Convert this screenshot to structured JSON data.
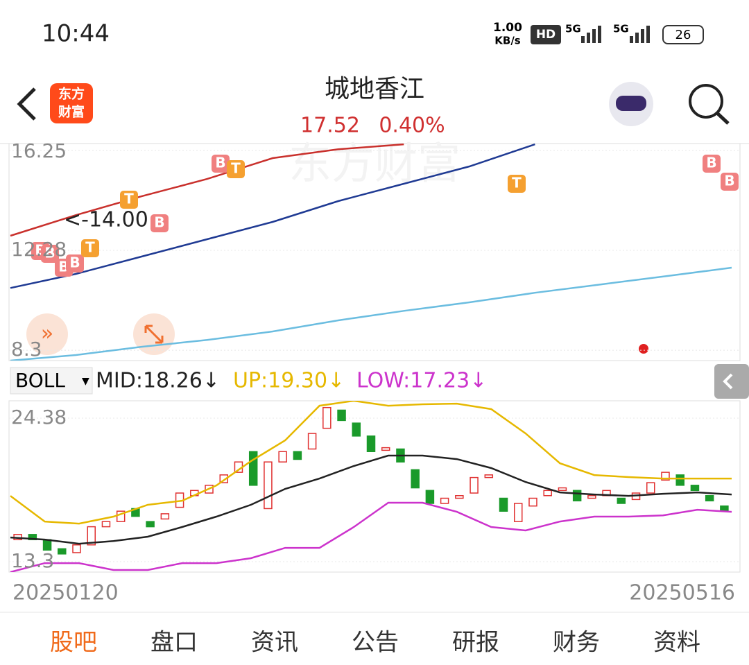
{
  "status": {
    "time": "10:44",
    "speed": "1.00",
    "speed_unit": "KB/s",
    "hd": "HD",
    "net1": "5G",
    "net2": "5G",
    "battery": "26"
  },
  "header": {
    "logo_top": "东方",
    "logo_bottom": "财富",
    "title": "城地香江",
    "price": "17.52",
    "change": "0.40%"
  },
  "indicator": {
    "name": "BOLL",
    "mid": "MID:18.26↓",
    "up": "UP:19.30↓",
    "low": "LOW:17.23↓"
  },
  "dates": {
    "start": "20250120",
    "end": "20250516"
  },
  "tabs": [
    "股吧",
    "盘口",
    "资讯",
    "公告",
    "研报",
    "财务",
    "资料"
  ],
  "chart_data": [
    {
      "type": "line",
      "ylim": [
        7.89,
        16.53
      ],
      "yticks": [
        16.25,
        12.28,
        8.3
      ],
      "annotation": "<-14.00",
      "markers": [
        "B",
        "B",
        "B",
        "B",
        "T",
        "T",
        "B",
        "B",
        "T",
        "T",
        "B",
        "B"
      ],
      "series": [
        {
          "color": "#6bbde0",
          "values": [
            7.89,
            8.11,
            8.44,
            8.71,
            9.05,
            9.49,
            9.87,
            10.21,
            10.59,
            10.92,
            11.25,
            11.59
          ]
        },
        {
          "color": "#1f3a93",
          "values": [
            10.78,
            11.34,
            12.03,
            12.72,
            13.41,
            14.24,
            14.93,
            15.62,
            16.5,
            null,
            null,
            null
          ]
        },
        {
          "color": "#c9302c",
          "values": [
            12.86,
            13.68,
            14.43,
            15.12,
            15.95,
            16.3,
            16.5,
            null,
            null,
            null,
            null,
            null
          ]
        }
      ]
    },
    {
      "type": "candlestick",
      "ylim": [
        12.5,
        25.72
      ],
      "yticks": [
        24.38,
        13.3
      ],
      "open": [
        15.0,
        15.4,
        15.0,
        14.3,
        14.0,
        14.6,
        16.0,
        16.4,
        17.4,
        16.4,
        16.6,
        17.5,
        18.4,
        18.6,
        19.4,
        20.2,
        21.8,
        17.4,
        21.0,
        21.8,
        22.0,
        23.6,
        25.0,
        24.0,
        23.0,
        21.9,
        22.0,
        20.4,
        18.8,
        17.8,
        18.2,
        18.6,
        19.8,
        18.2,
        16.4,
        17.6,
        18.4,
        18.8,
        18.8,
        18.2,
        18.4,
        18.2,
        18.1,
        18.6,
        19.6,
        20.0,
        19.2,
        18.4,
        17.6
      ],
      "close": [
        15.4,
        15.0,
        14.2,
        13.9,
        14.6,
        16.0,
        16.4,
        17.2,
        16.8,
        16.0,
        17.0,
        18.6,
        18.8,
        19.2,
        20.0,
        21.0,
        19.2,
        21.0,
        21.8,
        21.2,
        23.2,
        25.2,
        24.2,
        23.0,
        21.8,
        22.1,
        21.0,
        19.0,
        17.8,
        18.2,
        18.4,
        19.8,
        20.0,
        17.2,
        17.8,
        18.2,
        18.8,
        19.0,
        18.0,
        18.4,
        18.8,
        17.8,
        18.6,
        19.4,
        20.2,
        19.2,
        18.8,
        18.0,
        17.2
      ],
      "series": [
        {
          "name": "UP",
          "color": "#e6b800",
          "values": [
            18.38,
            16.4,
            16.24,
            16.78,
            17.69,
            18.01,
            19.19,
            21.06,
            22.67,
            25.34,
            25.72,
            25.34,
            25.45,
            25.5,
            25.08,
            23.2,
            20.9,
            19.99,
            19.83,
            19.72,
            19.72,
            19.72
          ]
        },
        {
          "name": "MID",
          "color": "#222222",
          "values": [
            15.17,
            15.01,
            14.69,
            14.9,
            15.23,
            15.98,
            16.78,
            17.69,
            18.92,
            19.72,
            20.69,
            21.49,
            21.49,
            21.22,
            20.53,
            19.45,
            18.65,
            18.49,
            18.38,
            18.54,
            18.65,
            18.49
          ]
        },
        {
          "name": "LOW",
          "color": "#cc33cc",
          "values": [
            12.5,
            13.19,
            13.19,
            12.66,
            12.66,
            13.19,
            13.19,
            13.57,
            14.37,
            14.37,
            15.98,
            17.85,
            17.85,
            17.15,
            15.98,
            15.71,
            16.4,
            16.78,
            16.78,
            16.88,
            17.31,
            17.15
          ]
        }
      ]
    }
  ]
}
